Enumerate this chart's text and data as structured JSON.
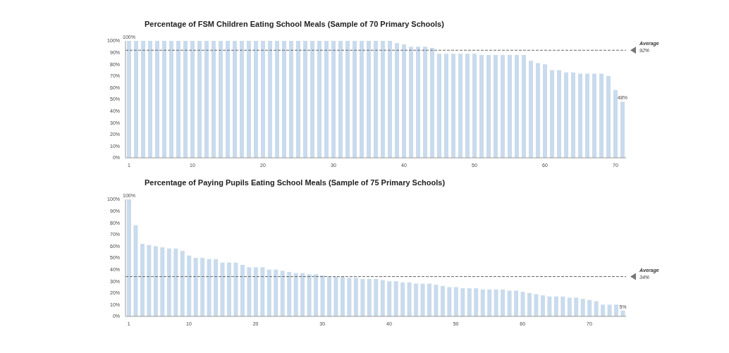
{
  "chart_data": [
    {
      "type": "bar",
      "title": "Percentage of FSM Children Eating School Meals (Sample of 70 Primary Schools)",
      "categories": [
        "1",
        null,
        null,
        null,
        null,
        null,
        null,
        null,
        null,
        "10",
        null,
        null,
        null,
        null,
        null,
        null,
        null,
        null,
        null,
        "20",
        null,
        null,
        null,
        null,
        null,
        null,
        null,
        null,
        null,
        "30",
        null,
        null,
        null,
        null,
        null,
        null,
        null,
        null,
        null,
        "40",
        null,
        null,
        null,
        null,
        null,
        null,
        null,
        null,
        null,
        "50",
        null,
        null,
        null,
        null,
        null,
        null,
        null,
        null,
        null,
        "60",
        null,
        null,
        null,
        null,
        null,
        null,
        null,
        null,
        null,
        "70",
        null
      ],
      "values": [
        100,
        100,
        100,
        100,
        100,
        100,
        100,
        100,
        100,
        100,
        100,
        100,
        100,
        100,
        100,
        100,
        100,
        100,
        100,
        100,
        100,
        100,
        100,
        100,
        100,
        100,
        100,
        100,
        100,
        100,
        100,
        100,
        100,
        100,
        100,
        100,
        100,
        100,
        98,
        97,
        95,
        95,
        95,
        94,
        89,
        89,
        89,
        89,
        89,
        89,
        88,
        88,
        88,
        88,
        88,
        88,
        88,
        83,
        81,
        80,
        75,
        75,
        73,
        73,
        72,
        72,
        72,
        72,
        70,
        58,
        48
      ],
      "value_labels": [
        "100%",
        null,
        null,
        null,
        null,
        null,
        null,
        null,
        null,
        null,
        null,
        null,
        null,
        null,
        null,
        null,
        null,
        null,
        null,
        null,
        null,
        null,
        null,
        null,
        null,
        null,
        null,
        null,
        null,
        null,
        null,
        null,
        null,
        null,
        null,
        null,
        null,
        null,
        null,
        null,
        null,
        null,
        null,
        null,
        null,
        null,
        null,
        null,
        null,
        null,
        null,
        null,
        null,
        null,
        null,
        null,
        null,
        null,
        null,
        null,
        null,
        null,
        null,
        null,
        null,
        null,
        null,
        null,
        null,
        null,
        "48%"
      ],
      "color": "#c9dbed",
      "ylim": [
        0,
        100
      ],
      "yticks": [
        {
          "value": 0,
          "label": "0%"
        },
        {
          "value": 10,
          "label": "10%"
        },
        {
          "value": 20,
          "label": "20%"
        },
        {
          "value": 30,
          "label": "30%"
        },
        {
          "value": 40,
          "label": "40%"
        },
        {
          "value": 50,
          "label": "50%"
        },
        {
          "value": 60,
          "label": "60%"
        },
        {
          "value": 70,
          "label": "70%"
        },
        {
          "value": 80,
          "label": "80%"
        },
        {
          "value": 90,
          "label": "90%"
        },
        {
          "value": 100,
          "label": "100%"
        }
      ],
      "ref_lines": [
        {
          "axis": "y",
          "value": 92,
          "label": "92%",
          "color": "#666666",
          "line_style": "dashed"
        }
      ],
      "annotations": [
        "Average"
      ]
    },
    {
      "type": "bar",
      "title": "Percentage of Paying Pupils Eating School Meals (Sample of 75 Primary Schools)",
      "categories": [
        "1",
        null,
        null,
        null,
        null,
        null,
        null,
        null,
        null,
        "10",
        null,
        null,
        null,
        null,
        null,
        null,
        null,
        null,
        null,
        "20",
        null,
        null,
        null,
        null,
        null,
        null,
        null,
        null,
        null,
        "30",
        null,
        null,
        null,
        null,
        null,
        null,
        null,
        null,
        null,
        "40",
        null,
        null,
        null,
        null,
        null,
        null,
        null,
        null,
        null,
        "50",
        null,
        null,
        null,
        null,
        null,
        null,
        null,
        null,
        null,
        "60",
        null,
        null,
        null,
        null,
        null,
        null,
        null,
        null,
        null,
        "70",
        null,
        null,
        null,
        null,
        null
      ],
      "values": [
        100,
        78,
        62,
        61,
        60,
        59,
        58,
        58,
        56,
        52,
        50,
        50,
        49,
        49,
        46,
        46,
        46,
        44,
        42,
        42,
        42,
        40,
        40,
        39,
        38,
        37,
        37,
        36,
        36,
        35,
        34,
        34,
        34,
        33,
        33,
        32,
        32,
        32,
        31,
        30,
        30,
        29,
        29,
        28,
        28,
        28,
        27,
        26,
        25,
        25,
        24,
        24,
        24,
        23,
        23,
        23,
        23,
        22,
        22,
        21,
        20,
        19,
        18,
        17,
        17,
        17,
        16,
        16,
        15,
        14,
        13,
        10,
        10,
        10,
        5
      ],
      "value_labels": [
        "100%",
        null,
        null,
        null,
        null,
        null,
        null,
        null,
        null,
        null,
        null,
        null,
        null,
        null,
        null,
        null,
        null,
        null,
        null,
        null,
        null,
        null,
        null,
        null,
        null,
        null,
        null,
        null,
        null,
        null,
        null,
        null,
        null,
        null,
        null,
        null,
        null,
        null,
        null,
        null,
        null,
        null,
        null,
        null,
        null,
        null,
        null,
        null,
        null,
        null,
        null,
        null,
        null,
        null,
        null,
        null,
        null,
        null,
        null,
        null,
        null,
        null,
        null,
        null,
        null,
        null,
        null,
        null,
        null,
        null,
        null,
        null,
        null,
        null,
        "5%"
      ],
      "color": "#c9dbed",
      "ylim": [
        0,
        100
      ],
      "yticks": [
        {
          "value": 0,
          "label": "0%"
        },
        {
          "value": 10,
          "label": "10%"
        },
        {
          "value": 20,
          "label": "20%"
        },
        {
          "value": 30,
          "label": "30%"
        },
        {
          "value": 40,
          "label": "40%"
        },
        {
          "value": 50,
          "label": "50%"
        },
        {
          "value": 60,
          "label": "60%"
        },
        {
          "value": 70,
          "label": "70%"
        },
        {
          "value": 80,
          "label": "80%"
        },
        {
          "value": 90,
          "label": "90%"
        },
        {
          "value": 100,
          "label": "100%"
        }
      ],
      "ref_lines": [
        {
          "axis": "y",
          "value": 34,
          "label": "34%",
          "color": "#666666",
          "line_style": "dashed"
        }
      ],
      "annotations": [
        "Average"
      ]
    }
  ]
}
